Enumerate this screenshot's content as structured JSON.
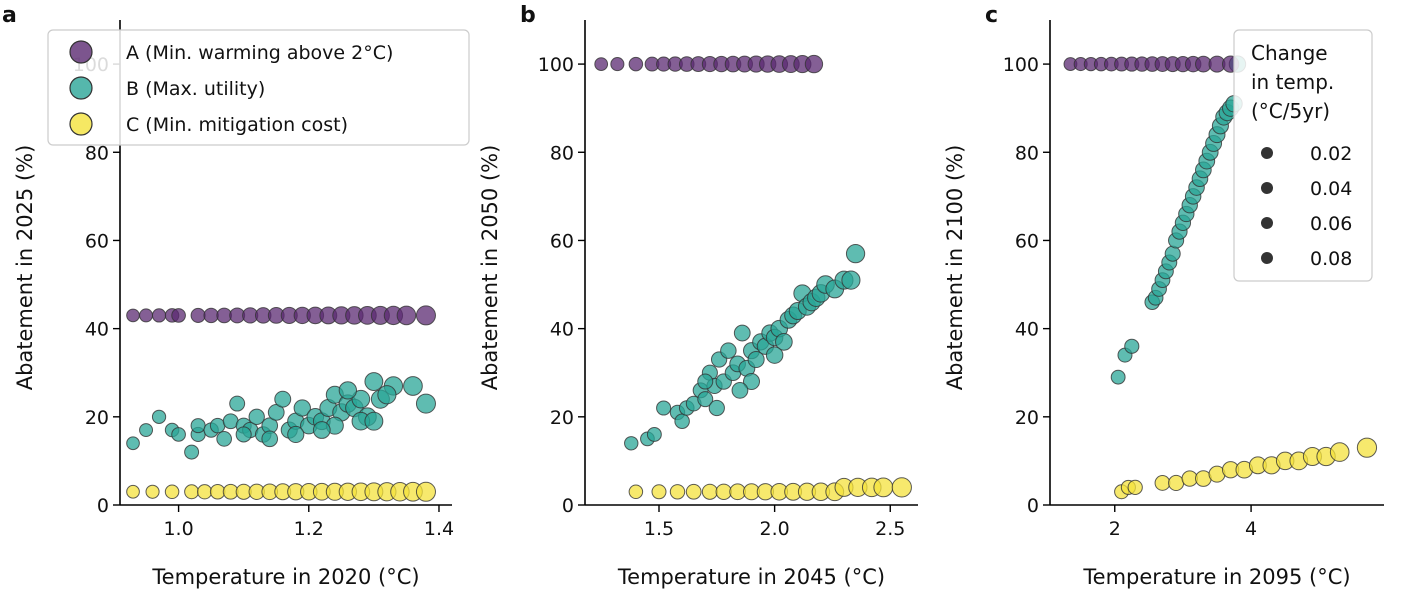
{
  "colors": {
    "A": "#5b2a72",
    "B": "#2aa597",
    "C": "#f4e23c",
    "edge": "#333333",
    "axis": "#000000"
  },
  "legend": {
    "entries": [
      {
        "key": "A",
        "label": "A (Min. warming above 2°C)"
      },
      {
        "key": "B",
        "label": "B (Max. utility)"
      },
      {
        "key": "C",
        "label": "C (Min. mitigation cost)"
      }
    ],
    "size_title": [
      "Change",
      "in temp.",
      "(°C/5yr)"
    ],
    "size_entries": [
      "0.02",
      "0.04",
      "0.06",
      "0.08"
    ]
  },
  "chart_data": [
    {
      "type": "scatter",
      "panel": "a",
      "xlabel": "Temperature in 2020 (°C)",
      "ylabel": "Abatement in 2025 (%)",
      "xlim": [
        0.91,
        1.42
      ],
      "ylim": [
        0,
        110
      ],
      "xticks": [
        {
          "v": 1.0,
          "label": "1.0"
        },
        {
          "v": 1.2,
          "label": "1.2"
        },
        {
          "v": 1.4,
          "label": "1.4"
        }
      ],
      "yticks": [
        0,
        20,
        40,
        60,
        80,
        100
      ],
      "series": [
        {
          "key": "A",
          "points": [
            [
              0.93,
              43
            ],
            [
              0.95,
              43
            ],
            [
              0.97,
              43
            ],
            [
              0.99,
              43
            ],
            [
              1.0,
              43
            ],
            [
              1.03,
              43
            ],
            [
              1.05,
              43
            ],
            [
              1.07,
              43
            ],
            [
              1.09,
              43
            ],
            [
              1.11,
              43
            ],
            [
              1.13,
              43
            ],
            [
              1.15,
              43
            ],
            [
              1.17,
              43
            ],
            [
              1.19,
              43
            ],
            [
              1.21,
              43
            ],
            [
              1.23,
              43
            ],
            [
              1.25,
              43
            ],
            [
              1.27,
              43
            ],
            [
              1.29,
              43
            ],
            [
              1.31,
              43
            ],
            [
              1.33,
              43
            ],
            [
              1.35,
              43
            ],
            [
              1.38,
              43
            ]
          ]
        },
        {
          "key": "B",
          "points": [
            [
              0.93,
              14
            ],
            [
              0.95,
              17
            ],
            [
              0.97,
              20
            ],
            [
              0.99,
              17
            ],
            [
              1.0,
              16
            ],
            [
              1.02,
              12
            ],
            [
              1.03,
              16
            ],
            [
              1.03,
              18
            ],
            [
              1.05,
              17
            ],
            [
              1.06,
              18
            ],
            [
              1.07,
              15
            ],
            [
              1.08,
              19
            ],
            [
              1.09,
              23
            ],
            [
              1.1,
              18
            ],
            [
              1.11,
              17
            ],
            [
              1.12,
              20
            ],
            [
              1.13,
              16
            ],
            [
              1.14,
              18
            ],
            [
              1.15,
              21
            ],
            [
              1.16,
              24
            ],
            [
              1.17,
              17
            ],
            [
              1.18,
              19
            ],
            [
              1.19,
              22
            ],
            [
              1.2,
              18
            ],
            [
              1.21,
              20
            ],
            [
              1.22,
              19
            ],
            [
              1.23,
              22
            ],
            [
              1.24,
              25
            ],
            [
              1.25,
              21
            ],
            [
              1.26,
              23
            ],
            [
              1.27,
              22
            ],
            [
              1.28,
              24
            ],
            [
              1.29,
              20
            ],
            [
              1.3,
              28
            ],
            [
              1.31,
              24
            ],
            [
              1.33,
              27
            ],
            [
              1.36,
              27
            ],
            [
              1.38,
              23
            ],
            [
              1.32,
              25
            ],
            [
              1.28,
              19
            ],
            [
              1.3,
              19
            ],
            [
              1.26,
              26
            ],
            [
              1.24,
              18
            ],
            [
              1.22,
              17
            ],
            [
              1.18,
              16
            ],
            [
              1.14,
              15
            ],
            [
              1.1,
              16
            ]
          ]
        },
        {
          "key": "C",
          "points": [
            [
              0.93,
              3
            ],
            [
              0.96,
              3
            ],
            [
              0.99,
              3
            ],
            [
              1.02,
              3
            ],
            [
              1.04,
              3
            ],
            [
              1.06,
              3
            ],
            [
              1.08,
              3
            ],
            [
              1.1,
              3
            ],
            [
              1.12,
              3
            ],
            [
              1.14,
              3
            ],
            [
              1.16,
              3
            ],
            [
              1.18,
              3
            ],
            [
              1.2,
              3
            ],
            [
              1.22,
              3
            ],
            [
              1.24,
              3
            ],
            [
              1.26,
              3
            ],
            [
              1.28,
              3
            ],
            [
              1.3,
              3
            ],
            [
              1.32,
              3
            ],
            [
              1.34,
              3
            ],
            [
              1.36,
              3
            ],
            [
              1.38,
              3
            ]
          ]
        }
      ]
    },
    {
      "type": "scatter",
      "panel": "b",
      "xlabel": "Temperature in 2045 (°C)",
      "ylabel": "Abatement in 2050 (%)",
      "xlim": [
        1.18,
        2.62
      ],
      "ylim": [
        0,
        110
      ],
      "xticks": [
        {
          "v": 1.5,
          "label": "1.5"
        },
        {
          "v": 2.0,
          "label": "2.0"
        },
        {
          "v": 2.5,
          "label": "2.5"
        }
      ],
      "yticks": [
        0,
        20,
        40,
        60,
        80,
        100
      ],
      "series": [
        {
          "key": "A",
          "points": [
            [
              1.25,
              100
            ],
            [
              1.32,
              100
            ],
            [
              1.4,
              100
            ],
            [
              1.47,
              100
            ],
            [
              1.52,
              100
            ],
            [
              1.57,
              100
            ],
            [
              1.62,
              100
            ],
            [
              1.67,
              100
            ],
            [
              1.72,
              100
            ],
            [
              1.77,
              100
            ],
            [
              1.82,
              100
            ],
            [
              1.87,
              100
            ],
            [
              1.92,
              100
            ],
            [
              1.97,
              100
            ],
            [
              2.02,
              100
            ],
            [
              2.07,
              100
            ],
            [
              2.12,
              100
            ],
            [
              2.17,
              100
            ]
          ]
        },
        {
          "key": "B",
          "points": [
            [
              1.38,
              14
            ],
            [
              1.45,
              15
            ],
            [
              1.48,
              16
            ],
            [
              1.52,
              22
            ],
            [
              1.58,
              21
            ],
            [
              1.6,
              19
            ],
            [
              1.62,
              22
            ],
            [
              1.65,
              23
            ],
            [
              1.68,
              26
            ],
            [
              1.7,
              24
            ],
            [
              1.72,
              30
            ],
            [
              1.74,
              27
            ],
            [
              1.76,
              33
            ],
            [
              1.78,
              28
            ],
            [
              1.8,
              35
            ],
            [
              1.82,
              30
            ],
            [
              1.84,
              32
            ],
            [
              1.86,
              39
            ],
            [
              1.88,
              31
            ],
            [
              1.9,
              35
            ],
            [
              1.92,
              33
            ],
            [
              1.94,
              37
            ],
            [
              1.96,
              36
            ],
            [
              1.98,
              39
            ],
            [
              2.0,
              38
            ],
            [
              2.02,
              40
            ],
            [
              2.04,
              37
            ],
            [
              2.06,
              42
            ],
            [
              2.08,
              43
            ],
            [
              2.1,
              44
            ],
            [
              2.12,
              48
            ],
            [
              2.14,
              45
            ],
            [
              2.16,
              46
            ],
            [
              2.18,
              47
            ],
            [
              2.2,
              48
            ],
            [
              2.22,
              50
            ],
            [
              2.26,
              49
            ],
            [
              2.3,
              51
            ],
            [
              2.33,
              51
            ],
            [
              2.35,
              57
            ],
            [
              1.75,
              22
            ],
            [
              1.9,
              28
            ],
            [
              2.0,
              34
            ],
            [
              1.7,
              28
            ],
            [
              1.85,
              26
            ]
          ]
        },
        {
          "key": "C",
          "points": [
            [
              1.4,
              3
            ],
            [
              1.5,
              3
            ],
            [
              1.58,
              3
            ],
            [
              1.65,
              3
            ],
            [
              1.72,
              3
            ],
            [
              1.78,
              3
            ],
            [
              1.84,
              3
            ],
            [
              1.9,
              3
            ],
            [
              1.96,
              3
            ],
            [
              2.02,
              3
            ],
            [
              2.08,
              3
            ],
            [
              2.14,
              3
            ],
            [
              2.2,
              3
            ],
            [
              2.26,
              3
            ],
            [
              2.3,
              4
            ],
            [
              2.36,
              4
            ],
            [
              2.42,
              4
            ],
            [
              2.47,
              4
            ],
            [
              2.55,
              4
            ]
          ]
        }
      ]
    },
    {
      "type": "scatter",
      "panel": "c",
      "xlabel": "Temperature in 2095 (°C)",
      "ylabel": "Abatement in 2100 (%)",
      "xlim": [
        1.05,
        5.95
      ],
      "ylim": [
        0,
        110
      ],
      "xticks": [
        {
          "v": 2,
          "label": "2"
        },
        {
          "v": 4,
          "label": "4"
        }
      ],
      "yticks": [
        0,
        20,
        40,
        60,
        80,
        100
      ],
      "series": [
        {
          "key": "A",
          "points": [
            [
              1.35,
              100
            ],
            [
              1.5,
              100
            ],
            [
              1.65,
              100
            ],
            [
              1.8,
              100
            ],
            [
              1.95,
              100
            ],
            [
              2.1,
              100
            ],
            [
              2.25,
              100
            ],
            [
              2.4,
              100
            ],
            [
              2.55,
              100
            ],
            [
              2.7,
              100
            ],
            [
              2.85,
              100
            ],
            [
              3.0,
              100
            ],
            [
              3.15,
              100
            ],
            [
              3.3,
              100
            ],
            [
              3.5,
              100
            ],
            [
              3.7,
              100
            ]
          ]
        },
        {
          "key": "B",
          "points": [
            [
              2.05,
              29
            ],
            [
              2.15,
              34
            ],
            [
              2.25,
              36
            ],
            [
              2.55,
              46
            ],
            [
              2.6,
              47
            ],
            [
              2.65,
              49
            ],
            [
              2.7,
              51
            ],
            [
              2.75,
              53
            ],
            [
              2.8,
              55
            ],
            [
              2.85,
              57
            ],
            [
              2.9,
              60
            ],
            [
              2.95,
              62
            ],
            [
              3.0,
              64
            ],
            [
              3.05,
              66
            ],
            [
              3.1,
              68
            ],
            [
              3.15,
              70
            ],
            [
              3.2,
              72
            ],
            [
              3.25,
              74
            ],
            [
              3.3,
              76
            ],
            [
              3.35,
              78
            ],
            [
              3.4,
              80
            ],
            [
              3.45,
              82
            ],
            [
              3.5,
              84
            ],
            [
              3.55,
              86
            ],
            [
              3.6,
              88
            ],
            [
              3.65,
              89
            ],
            [
              3.7,
              90
            ],
            [
              3.75,
              91
            ],
            [
              3.8,
              100
            ]
          ]
        },
        {
          "key": "C",
          "points": [
            [
              2.1,
              3
            ],
            [
              2.2,
              4
            ],
            [
              2.3,
              4
            ],
            [
              2.7,
              5
            ],
            [
              2.9,
              5
            ],
            [
              3.1,
              6
            ],
            [
              3.3,
              6
            ],
            [
              3.5,
              7
            ],
            [
              3.7,
              8
            ],
            [
              3.9,
              8
            ],
            [
              4.1,
              9
            ],
            [
              4.3,
              9
            ],
            [
              4.5,
              10
            ],
            [
              4.7,
              10
            ],
            [
              4.9,
              11
            ],
            [
              5.1,
              11
            ],
            [
              5.3,
              12
            ],
            [
              5.7,
              13
            ]
          ]
        }
      ]
    }
  ],
  "panels": [
    {
      "letter": "a"
    },
    {
      "letter": "b"
    },
    {
      "letter": "c"
    }
  ]
}
